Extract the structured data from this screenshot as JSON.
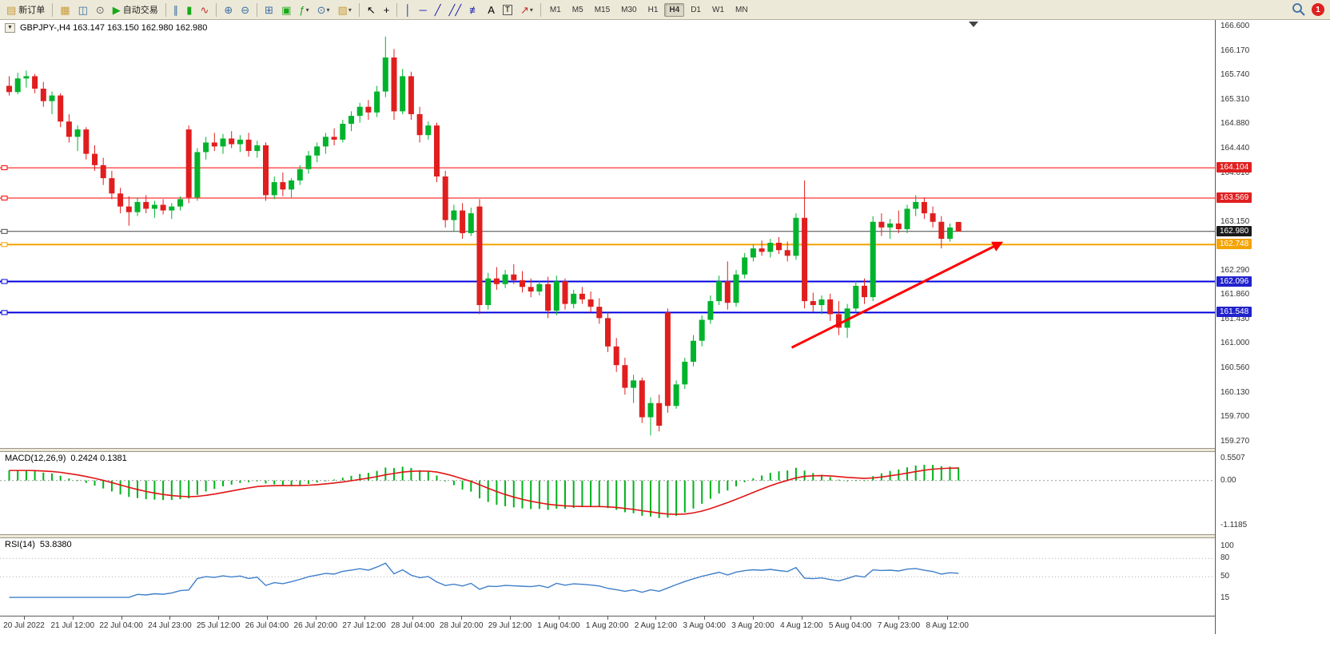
{
  "toolbar": {
    "notification_count": "1",
    "timeframes": [
      "M1",
      "M5",
      "M15",
      "M30",
      "H1",
      "H4",
      "D1",
      "W1",
      "MN"
    ],
    "active_timeframe": "H4",
    "items": [
      {
        "name": "new-order-button",
        "icon": "new-order-icon",
        "glyph": "▤",
        "color": "#c89b3c",
        "label": "新订单"
      },
      {
        "sep": true
      },
      {
        "name": "profiles-button",
        "icon": "profiles-icon",
        "glyph": "▦",
        "color": "#c89b3c"
      },
      {
        "name": "market-watch-button",
        "icon": "market-watch-icon",
        "glyph": "◫",
        "color": "#3a6ea5"
      },
      {
        "name": "navigator-button",
        "icon": "navigator-icon",
        "glyph": "⊙",
        "color": "#666666"
      },
      {
        "name": "auto-trading-button",
        "icon": "auto-trading-robot-icon",
        "glyph": "▶",
        "color": "#18a818",
        "label": "自动交易"
      },
      {
        "sep": true
      },
      {
        "name": "bar-chart-button",
        "icon": "bar-chart-icon",
        "glyph": "∥",
        "color": "#3a6ea5"
      },
      {
        "name": "candlestick-chart-button",
        "icon": "candlestick-chart-icon",
        "glyph": "▮",
        "color": "#18a818"
      },
      {
        "name": "line-chart-button",
        "icon": "line-chart-icon",
        "glyph": "∿",
        "color": "#c03030"
      },
      {
        "sep": true
      },
      {
        "name": "zoom-in-button",
        "icon": "zoom-in-icon",
        "glyph": "⊕",
        "color": "#3a6ea5"
      },
      {
        "name": "zoom-out-button",
        "icon": "zoom-out-icon",
        "glyph": "⊖",
        "color": "#3a6ea5"
      },
      {
        "sep": true
      },
      {
        "name": "tile-windows-button",
        "icon": "tile-windows-icon",
        "glyph": "⊞",
        "color": "#3a6ea5"
      },
      {
        "name": "auto-arrange-button",
        "icon": "auto-arrange-icon",
        "glyph": "▣",
        "color": "#18a818"
      },
      {
        "name": "indicators-button",
        "icon": "indicators-icon",
        "glyph": "ƒ",
        "color": "#18a818",
        "caret": true
      },
      {
        "name": "periods-button",
        "icon": "clock-icon",
        "glyph": "⊙",
        "color": "#3a6ea5",
        "caret": true
      },
      {
        "name": "templates-button",
        "icon": "template-icon",
        "glyph": "▨",
        "color": "#c89b3c",
        "caret": true
      },
      {
        "sep": true
      },
      {
        "name": "cursor-button",
        "icon": "cursor-icon",
        "glyph": "↖",
        "color": "#000000"
      },
      {
        "name": "crosshair-button",
        "icon": "crosshair-icon",
        "glyph": "+",
        "color": "#000000"
      },
      {
        "sep": true
      },
      {
        "name": "vertical-line-button",
        "icon": "vertical-line-icon",
        "glyph": "│",
        "color": "#1a1aae"
      },
      {
        "name": "horizontal-line-button",
        "icon": "horizontal-line-icon",
        "glyph": "─",
        "color": "#1a1aae"
      },
      {
        "name": "trendline-button",
        "icon": "trendline-icon",
        "glyph": "╱",
        "color": "#1a1aae"
      },
      {
        "name": "channel-button",
        "icon": "channel-icon",
        "glyph": "╱╱",
        "color": "#1a1aae"
      },
      {
        "name": "fibonacci-button",
        "icon": "fibonacci-icon",
        "glyph": "≢",
        "color": "#1a1aae"
      },
      {
        "name": "andrews-text-button",
        "icon": "letter-a-icon",
        "glyph": "A",
        "color": "#000000"
      },
      {
        "name": "text-label-button",
        "icon": "text-label-icon",
        "glyph": "T",
        "boxed": true,
        "color": "#000000"
      },
      {
        "name": "arrows-button",
        "icon": "arrow-object-icon",
        "glyph": "↗",
        "color": "#c03030",
        "caret": true
      },
      {
        "sep": true
      }
    ]
  },
  "chart": {
    "title": "GBPJPY-,H4  163.147 163.150 162.980 162.980",
    "collapse_icon": "▼"
  },
  "chart_data": [
    {
      "type": "candlestick",
      "title": "GBPJPY- H4",
      "ylim": [
        159.27,
        166.6
      ],
      "up_color": "#00b32c",
      "down_color": "#e01e1e",
      "yticks": [
        {
          "label": "166.600",
          "value": 166.6
        },
        {
          "label": "166.170",
          "value": 166.17
        },
        {
          "label": "165.740",
          "value": 165.74
        },
        {
          "label": "165.310",
          "value": 165.31
        },
        {
          "label": "164.880",
          "value": 164.88
        },
        {
          "label": "164.440",
          "value": 164.44
        },
        {
          "label": "164.010",
          "value": 164.01
        },
        {
          "label": "163.150",
          "value": 163.15
        },
        {
          "label": "162.290",
          "value": 162.29
        },
        {
          "label": "161.860",
          "value": 161.86
        },
        {
          "label": "161.430",
          "value": 161.43
        },
        {
          "label": "161.000",
          "value": 161.0
        },
        {
          "label": "160.560",
          "value": 160.56
        },
        {
          "label": "160.130",
          "value": 160.13
        },
        {
          "label": "159.700",
          "value": 159.7
        },
        {
          "label": "159.270",
          "value": 159.27
        }
      ],
      "badges": [
        {
          "label": "164.104",
          "value": 164.104,
          "bg": "#e02020",
          "fg": "#ffffff"
        },
        {
          "label": "163.569",
          "value": 163.569,
          "bg": "#e02020",
          "fg": "#ffffff"
        },
        {
          "label": "162.980",
          "value": 162.98,
          "bg": "#1a1a1a",
          "fg": "#ffffff"
        },
        {
          "label": "162.748",
          "value": 162.748,
          "bg": "#f5a300",
          "fg": "#ffffff"
        },
        {
          "label": "162.096",
          "value": 162.096,
          "bg": "#2222cc",
          "fg": "#ffffff"
        },
        {
          "label": "161.548",
          "value": 161.548,
          "bg": "#2222cc",
          "fg": "#ffffff"
        }
      ],
      "hlines": [
        {
          "price": 164.104,
          "color": "#ff0000",
          "width": 1,
          "label": "164.104"
        },
        {
          "price": 163.569,
          "color": "#ff0000",
          "width": 1,
          "label": "163.569"
        },
        {
          "price": 162.98,
          "color": "#444444",
          "width": 1,
          "label": "162.980"
        },
        {
          "price": 162.748,
          "color": "#f5a300",
          "width": 2,
          "label": "162.748"
        },
        {
          "price": 162.096,
          "color": "#0000dd",
          "width": 2,
          "label": "162.096"
        },
        {
          "price": 161.548,
          "color": "#0000dd",
          "width": 2,
          "label": "161.548"
        }
      ],
      "trend_arrow": {
        "from_index": 91.5,
        "from_price": 160.93,
        "to_index": 116,
        "to_price": 162.78,
        "color": "#ff0000"
      },
      "x_labels": [
        "20 Jul 2022",
        "21 Jul 12:00",
        "22 Jul 04:00",
        "24 Jul 23:00",
        "25 Jul 12:00",
        "26 Jul 04:00",
        "26 Jul 20:00",
        "27 Jul 12:00",
        "28 Jul 04:00",
        "28 Jul 20:00",
        "29 Jul 12:00",
        "1 Aug 04:00",
        "1 Aug 20:00",
        "2 Aug 12:00",
        "3 Aug 04:00",
        "3 Aug 20:00",
        "4 Aug 12:00",
        "5 Aug 04:00",
        "7 Aug 23:00",
        "8 Aug 12:00"
      ],
      "ohlc": [
        [
          165.55,
          165.72,
          165.38,
          165.44
        ],
        [
          165.44,
          165.78,
          165.4,
          165.68
        ],
        [
          165.68,
          165.82,
          165.52,
          165.72
        ],
        [
          165.72,
          165.76,
          165.42,
          165.5
        ],
        [
          165.5,
          165.62,
          165.18,
          165.28
        ],
        [
          165.28,
          165.45,
          165.05,
          165.38
        ],
        [
          165.38,
          165.42,
          164.82,
          164.92
        ],
        [
          164.92,
          165.05,
          164.55,
          164.65
        ],
        [
          164.65,
          164.85,
          164.4,
          164.78
        ],
        [
          164.78,
          164.82,
          164.25,
          164.35
        ],
        [
          164.35,
          164.5,
          164.05,
          164.15
        ],
        [
          164.15,
          164.28,
          163.8,
          163.92
        ],
        [
          163.92,
          164.05,
          163.55,
          163.65
        ],
        [
          163.65,
          163.75,
          163.3,
          163.42
        ],
        [
          163.42,
          163.6,
          163.08,
          163.32
        ],
        [
          163.32,
          163.58,
          163.25,
          163.5
        ],
        [
          163.5,
          163.62,
          163.3,
          163.38
        ],
        [
          163.38,
          163.52,
          163.22,
          163.45
        ],
        [
          163.45,
          163.55,
          163.28,
          163.35
        ],
        [
          163.35,
          163.48,
          163.2,
          163.42
        ],
        [
          163.42,
          163.6,
          163.35,
          163.55
        ],
        [
          164.78,
          164.85,
          163.48,
          163.58
        ],
        [
          163.58,
          164.45,
          163.52,
          164.38
        ],
        [
          164.38,
          164.65,
          164.25,
          164.55
        ],
        [
          164.55,
          164.72,
          164.4,
          164.48
        ],
        [
          164.48,
          164.7,
          164.35,
          164.62
        ],
        [
          164.62,
          164.75,
          164.45,
          164.52
        ],
        [
          164.52,
          164.68,
          164.38,
          164.6
        ],
        [
          164.6,
          164.72,
          164.3,
          164.4
        ],
        [
          164.4,
          164.58,
          164.28,
          164.5
        ],
        [
          164.5,
          164.55,
          163.52,
          163.62
        ],
        [
          163.62,
          163.95,
          163.55,
          163.85
        ],
        [
          163.85,
          164.02,
          163.6,
          163.72
        ],
        [
          163.72,
          163.92,
          163.58,
          163.88
        ],
        [
          163.88,
          164.15,
          163.8,
          164.08
        ],
        [
          164.08,
          164.4,
          164.0,
          164.32
        ],
        [
          164.32,
          164.55,
          164.2,
          164.48
        ],
        [
          164.48,
          164.72,
          164.35,
          164.65
        ],
        [
          164.65,
          164.8,
          164.5,
          164.6
        ],
        [
          164.6,
          164.95,
          164.55,
          164.88
        ],
        [
          164.88,
          165.1,
          164.75,
          165.02
        ],
        [
          165.02,
          165.25,
          164.9,
          165.18
        ],
        [
          165.18,
          165.3,
          164.95,
          165.08
        ],
        [
          165.08,
          165.55,
          165.0,
          165.45
        ],
        [
          165.45,
          166.42,
          165.35,
          166.05
        ],
        [
          166.05,
          166.2,
          164.95,
          165.1
        ],
        [
          165.1,
          165.85,
          165.05,
          165.72
        ],
        [
          165.72,
          165.8,
          164.95,
          165.05
        ],
        [
          165.05,
          165.18,
          164.55,
          164.68
        ],
        [
          164.68,
          164.92,
          164.6,
          164.85
        ],
        [
          164.85,
          164.9,
          163.85,
          163.95
        ],
        [
          163.95,
          164.05,
          163.05,
          163.18
        ],
        [
          163.18,
          163.45,
          162.98,
          163.35
        ],
        [
          163.35,
          163.48,
          162.85,
          162.95
        ],
        [
          162.95,
          163.4,
          162.9,
          163.3
        ],
        [
          163.42,
          163.55,
          161.52,
          161.68
        ],
        [
          161.68,
          162.25,
          161.6,
          162.15
        ],
        [
          162.15,
          162.35,
          161.95,
          162.05
        ],
        [
          162.05,
          162.3,
          161.98,
          162.22
        ],
        [
          162.22,
          162.4,
          162.05,
          162.12
        ],
        [
          162.12,
          162.28,
          161.9,
          162.0
        ],
        [
          162.0,
          162.15,
          161.82,
          161.92
        ],
        [
          161.92,
          162.1,
          161.85,
          162.05
        ],
        [
          162.05,
          162.18,
          161.45,
          161.58
        ],
        [
          161.58,
          162.2,
          161.5,
          162.1
        ],
        [
          162.1,
          162.15,
          161.6,
          161.7
        ],
        [
          161.7,
          161.95,
          161.62,
          161.88
        ],
        [
          161.88,
          162.0,
          161.7,
          161.78
        ],
        [
          161.78,
          161.92,
          161.55,
          161.65
        ],
        [
          161.65,
          161.8,
          161.35,
          161.45
        ],
        [
          161.45,
          161.55,
          160.85,
          160.95
        ],
        [
          160.95,
          161.1,
          160.5,
          160.62
        ],
        [
          160.62,
          160.75,
          160.1,
          160.22
        ],
        [
          160.22,
          160.45,
          159.95,
          160.35
        ],
        [
          160.35,
          160.4,
          159.6,
          159.7
        ],
        [
          159.7,
          160.05,
          159.38,
          159.95
        ],
        [
          159.95,
          160.1,
          159.45,
          159.55
        ],
        [
          161.55,
          161.62,
          159.78,
          159.9
        ],
        [
          159.9,
          160.35,
          159.85,
          160.28
        ],
        [
          160.28,
          160.75,
          160.2,
          160.68
        ],
        [
          160.68,
          161.15,
          160.6,
          161.05
        ],
        [
          161.05,
          161.5,
          160.95,
          161.42
        ],
        [
          161.42,
          161.85,
          161.35,
          161.75
        ],
        [
          161.75,
          162.2,
          161.68,
          162.1
        ],
        [
          162.1,
          162.45,
          161.6,
          161.72
        ],
        [
          161.72,
          162.3,
          161.65,
          162.22
        ],
        [
          162.22,
          162.6,
          162.15,
          162.52
        ],
        [
          162.52,
          162.75,
          162.45,
          162.68
        ],
        [
          162.68,
          162.82,
          162.55,
          162.62
        ],
        [
          162.62,
          162.85,
          162.52,
          162.78
        ],
        [
          162.78,
          162.88,
          162.58,
          162.65
        ],
        [
          162.65,
          162.8,
          162.45,
          162.55
        ],
        [
          162.55,
          163.3,
          162.48,
          163.22
        ],
        [
          163.22,
          163.88,
          161.62,
          161.75
        ],
        [
          161.75,
          161.9,
          161.55,
          161.68
        ],
        [
          161.68,
          161.85,
          161.52,
          161.78
        ],
        [
          161.78,
          161.88,
          161.4,
          161.52
        ],
        [
          161.52,
          161.75,
          161.15,
          161.28
        ],
        [
          161.28,
          161.7,
          161.1,
          161.62
        ],
        [
          161.62,
          162.1,
          161.55,
          162.02
        ],
        [
          162.02,
          162.15,
          161.7,
          161.82
        ],
        [
          161.82,
          163.25,
          161.75,
          163.15
        ],
        [
          163.15,
          163.3,
          162.9,
          163.05
        ],
        [
          163.05,
          163.2,
          162.85,
          163.12
        ],
        [
          163.12,
          163.35,
          162.95,
          163.02
        ],
        [
          163.02,
          163.45,
          162.95,
          163.38
        ],
        [
          163.38,
          163.62,
          163.25,
          163.5
        ],
        [
          163.5,
          163.58,
          163.2,
          163.3
        ],
        [
          163.3,
          163.42,
          163.05,
          163.15
        ],
        [
          163.15,
          163.25,
          162.68,
          162.85
        ],
        [
          162.85,
          163.12,
          162.8,
          163.05
        ],
        [
          163.147,
          163.15,
          162.98,
          162.98
        ]
      ]
    },
    {
      "type": "macd",
      "name": "MACD(12,26,9)",
      "values_text": "0.2424 0.1381",
      "fast": 12,
      "slow": 26,
      "signal": 9,
      "current_macd": 0.2424,
      "current_signal": 0.1381,
      "ylim": [
        -1.1185,
        0.5507
      ],
      "yticks": [
        {
          "label": "0.5507",
          "value": 0.5507
        },
        {
          "label": "0.00",
          "value": 0
        },
        {
          "label": "-1.1185",
          "value": -1.1185
        }
      ],
      "histogram_color": "#00b31b",
      "signal_color": "#e01515",
      "source": "close"
    },
    {
      "type": "rsi",
      "name": "RSI(14)",
      "values_text": "53.8380",
      "period": 14,
      "current": 53.838,
      "levels": [
        80,
        50
      ],
      "yticks": [
        {
          "label": "100",
          "value": 100
        },
        {
          "label": "80",
          "value": 80
        },
        {
          "label": "50",
          "value": 50
        },
        {
          "label": "15",
          "value": 15
        }
      ],
      "line_color": "#3f7fc9",
      "source": "close"
    }
  ]
}
